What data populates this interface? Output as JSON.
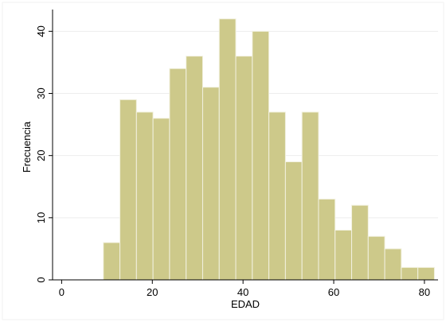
{
  "chart_data": {
    "type": "bar",
    "title": "",
    "xlabel": "EDAD",
    "ylabel": "Frecuencia",
    "xlim": [
      -2,
      83
    ],
    "ylim": [
      0,
      43.5
    ],
    "x_ticks": [
      0,
      20,
      40,
      60,
      80
    ],
    "y_ticks": [
      0,
      10,
      20,
      30,
      40
    ],
    "grid": "horizontal",
    "bin_width": 3.65,
    "bins": [
      {
        "start": 9.2,
        "value": 6
      },
      {
        "start": 12.85,
        "value": 29
      },
      {
        "start": 16.5,
        "value": 27
      },
      {
        "start": 20.15,
        "value": 26
      },
      {
        "start": 23.8,
        "value": 34
      },
      {
        "start": 27.45,
        "value": 36
      },
      {
        "start": 31.1,
        "value": 31
      },
      {
        "start": 34.75,
        "value": 42
      },
      {
        "start": 38.4,
        "value": 36
      },
      {
        "start": 42.05,
        "value": 40
      },
      {
        "start": 45.7,
        "value": 27
      },
      {
        "start": 49.35,
        "value": 19
      },
      {
        "start": 53.0,
        "value": 27
      },
      {
        "start": 56.65,
        "value": 13
      },
      {
        "start": 60.3,
        "value": 8
      },
      {
        "start": 63.95,
        "value": 12
      },
      {
        "start": 67.6,
        "value": 7
      },
      {
        "start": 71.25,
        "value": 5
      },
      {
        "start": 74.9,
        "value": 2
      },
      {
        "start": 78.55,
        "value": 2
      }
    ],
    "colors": {
      "bar_fill": "#cdc98a",
      "bar_stroke": "#f2f1e0",
      "grid": "#ededed",
      "axis": "#000000"
    }
  }
}
